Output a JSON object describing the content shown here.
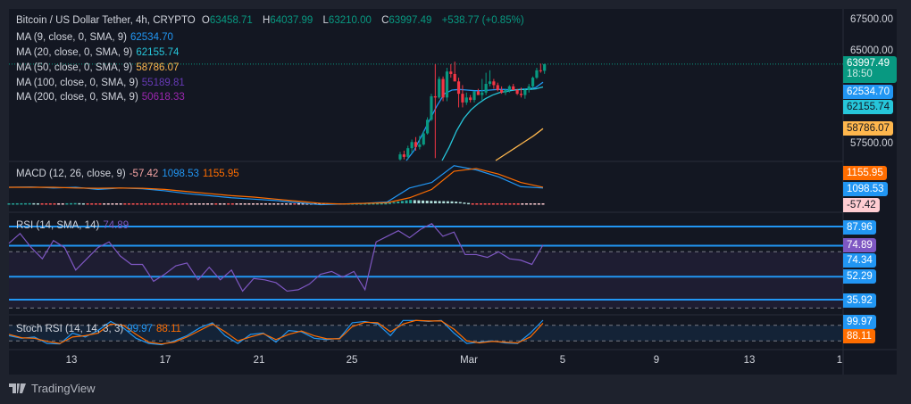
{
  "header": {
    "symbol": "Bitcoin / US Dollar Tether, 4h, CRYPTO",
    "open_label": "O",
    "open": "63458.71",
    "high_label": "H",
    "high": "64037.99",
    "low_label": "L",
    "low": "63210.00",
    "close_label": "C",
    "close": "63997.49",
    "change": "+538.77 (+0.85%)"
  },
  "moving_averages": [
    {
      "label": "MA (9, close, 0, SMA, 9)",
      "value": "62534.70",
      "color": "#2196f3"
    },
    {
      "label": "MA (20, close, 0, SMA, 9)",
      "value": "62155.74",
      "color": "#26c6da"
    },
    {
      "label": "MA (50, close, 0, SMA, 9)",
      "value": "58786.07",
      "color": "#ffb74d"
    },
    {
      "label": "MA (100, close, 0, SMA, 9)",
      "value": "55189.81",
      "color": "#673ab7"
    },
    {
      "label": "MA (200, close, 0, SMA, 9)",
      "value": "50618.33",
      "color": "#9c27b0"
    }
  ],
  "price_axis": {
    "ticks": [
      "67500.00",
      "65000.00",
      "57500.00"
    ],
    "last_price": "63997.49",
    "countdown": "18:50",
    "ma9_tag": "62534.70",
    "ma20_tag": "62155.74",
    "ma50_tag": "58786.07"
  },
  "macd": {
    "label": "MACD (12, 26, close, 9)",
    "hist": "-57.42",
    "macd": "1098.53",
    "signal": "1155.95",
    "macd_line": [
      1150,
      1180,
      1100,
      1150,
      1000,
      1100,
      1050,
      900,
      700,
      550,
      400,
      300,
      200,
      50,
      -100,
      -50,
      0,
      100,
      1100,
      1500,
      2700,
      2400,
      1900,
      1200,
      1098.53
    ],
    "signal_line": [
      1150,
      1150,
      1150,
      1100,
      1080,
      1100,
      1080,
      1000,
      850,
      700,
      550,
      450,
      300,
      150,
      0,
      -50,
      0,
      50,
      400,
      1000,
      2300,
      2500,
      2100,
      1500,
      1155.95
    ]
  },
  "rsi": {
    "label": "RSI (14, SMA, 14)",
    "value": "74.89",
    "axis_tags": [
      "87.96",
      "74.89",
      "74.34",
      "52.29",
      "35.92"
    ],
    "series": [
      76,
      83,
      73,
      65,
      78,
      73,
      57,
      65,
      73,
      77,
      67,
      61,
      61,
      49,
      54,
      60,
      62,
      50,
      59,
      50,
      57,
      42,
      51,
      50,
      48,
      42,
      43,
      47,
      54,
      56,
      52,
      56,
      43,
      77,
      81,
      85,
      80,
      86,
      90,
      81,
      84,
      68,
      68,
      66,
      70,
      65,
      64,
      61,
      74.89
    ]
  },
  "stoch_rsi": {
    "label": "Stoch RSI (14, 14, 3, 3)",
    "k": "99.97",
    "d": "88.11",
    "axis_tags": [
      "99.97",
      "88.11"
    ],
    "k_series": [
      40,
      30,
      35,
      10,
      8,
      50,
      35,
      60,
      95,
      70,
      30,
      10,
      5,
      20,
      40,
      70,
      90,
      40,
      10,
      45,
      50,
      15,
      60,
      55,
      30,
      25,
      30,
      90,
      95,
      85,
      40,
      99,
      99,
      95,
      99,
      50,
      10,
      15,
      20,
      12,
      10,
      50,
      99.97
    ],
    "d_series": [
      45,
      32,
      30,
      18,
      10,
      35,
      40,
      50,
      85,
      80,
      45,
      15,
      8,
      15,
      35,
      60,
      85,
      55,
      20,
      35,
      48,
      25,
      45,
      58,
      40,
      28,
      28,
      75,
      92,
      90,
      55,
      85,
      99,
      97,
      97,
      65,
      20,
      12,
      18,
      15,
      12,
      35,
      88.11
    ]
  },
  "time_axis": [
    "13",
    "17",
    "21",
    "25",
    "Mar",
    "5",
    "9",
    "13",
    "1"
  ],
  "candles": [
    [
      56300,
      56900,
      56000,
      56700
    ],
    [
      56700,
      57000,
      56300,
      56500
    ],
    [
      56500,
      57400,
      56300,
      57200
    ],
    [
      57200,
      57900,
      56800,
      57700
    ],
    [
      57700,
      58100,
      57000,
      57300
    ],
    [
      57300,
      58200,
      57100,
      57500
    ],
    [
      57500,
      58600,
      57400,
      58400
    ],
    [
      58400,
      59700,
      58300,
      59500
    ],
    [
      59500,
      61600,
      59400,
      61400
    ],
    [
      61400,
      64000,
      56400,
      61300
    ],
    [
      61300,
      63000,
      61200,
      62800
    ],
    [
      62800,
      63000,
      61000,
      61300
    ],
    [
      61300,
      63700,
      61000,
      63400
    ],
    [
      63400,
      64000,
      62900,
      63200
    ],
    [
      63200,
      64200,
      62600,
      62600
    ],
    [
      62600,
      62900,
      60500,
      61600
    ],
    [
      61600,
      62300,
      60500,
      60900
    ],
    [
      60900,
      61700,
      60700,
      61300
    ],
    [
      61300,
      61500,
      60900,
      61100
    ],
    [
      61100,
      61800,
      60900,
      61800
    ],
    [
      61800,
      62000,
      61500,
      61500
    ],
    [
      61500,
      62800,
      61100,
      61700
    ],
    [
      61700,
      63300,
      61500,
      62400
    ],
    [
      62400,
      63500,
      62200,
      62600
    ],
    [
      62600,
      62800,
      62000,
      62300
    ],
    [
      62300,
      62500,
      61800,
      61900
    ],
    [
      61900,
      62200,
      61600,
      61700
    ],
    [
      61700,
      62000,
      61500,
      61900
    ],
    [
      61900,
      62300,
      61700,
      62200
    ],
    [
      62200,
      62400,
      61900,
      61900
    ],
    [
      61900,
      62000,
      61500,
      61600
    ],
    [
      61600,
      62100,
      61300,
      61500
    ],
    [
      61500,
      62000,
      61200,
      61900
    ],
    [
      61900,
      62400,
      61700,
      62200
    ],
    [
      62200,
      63000,
      62000,
      62900
    ],
    [
      62900,
      63700,
      62800,
      63500
    ],
    [
      63500,
      64038,
      63300,
      63458
    ],
    [
      63458,
      64038,
      63210,
      63997
    ]
  ],
  "ma_lines": {
    "ma9": [
      56000,
      57000,
      58200,
      59400,
      60600,
      61600,
      61900,
      61950,
      61900,
      61850,
      61850,
      61900,
      61950,
      61950,
      61900,
      61950,
      62000,
      62100,
      62534.7
    ],
    "ma20": [
      56000,
      57300,
      58600,
      59600,
      60300,
      60800,
      61200,
      61500,
      61700,
      61800,
      61900,
      61950,
      61950,
      62000,
      62155.74
    ],
    "ma50": [
      56200,
      56700,
      57200,
      57700,
      58200,
      58786.07
    ]
  },
  "colors": {
    "up": "#089981",
    "down": "#f23645",
    "bg": "#131722",
    "rsi": "#7e57c2",
    "band": "#2196f3"
  },
  "branding": "TradingView"
}
